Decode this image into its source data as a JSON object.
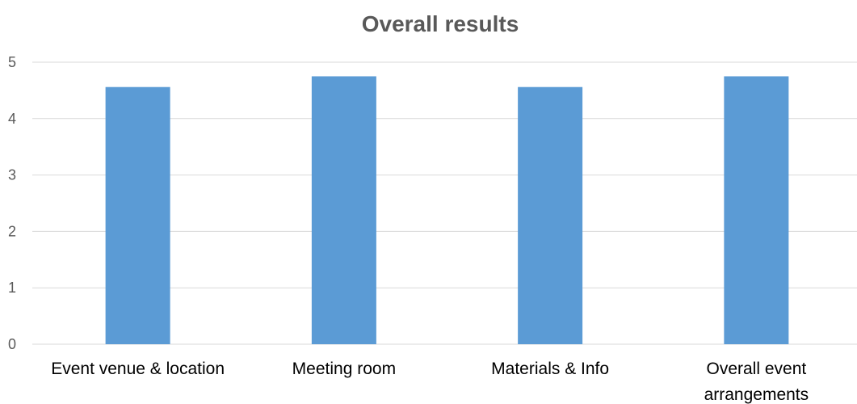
{
  "chart_data": {
    "type": "bar",
    "title": "Overall results",
    "categories": [
      "Event venue & location",
      "Meeting room",
      "Materials & Info",
      "Overall event arrangements"
    ],
    "category_label_lines": [
      [
        "Event venue & location"
      ],
      [
        "Meeting room"
      ],
      [
        "Materials & Info"
      ],
      [
        "Overall event",
        "arrangements"
      ]
    ],
    "values": [
      4.56,
      4.75,
      4.56,
      4.75
    ],
    "ylim": [
      0,
      5
    ],
    "yticks": [
      0,
      1,
      2,
      3,
      4,
      5
    ],
    "xlabel": "",
    "ylabel": "",
    "grid": true,
    "legend": "none",
    "bar_color": "#5b9bd5"
  }
}
